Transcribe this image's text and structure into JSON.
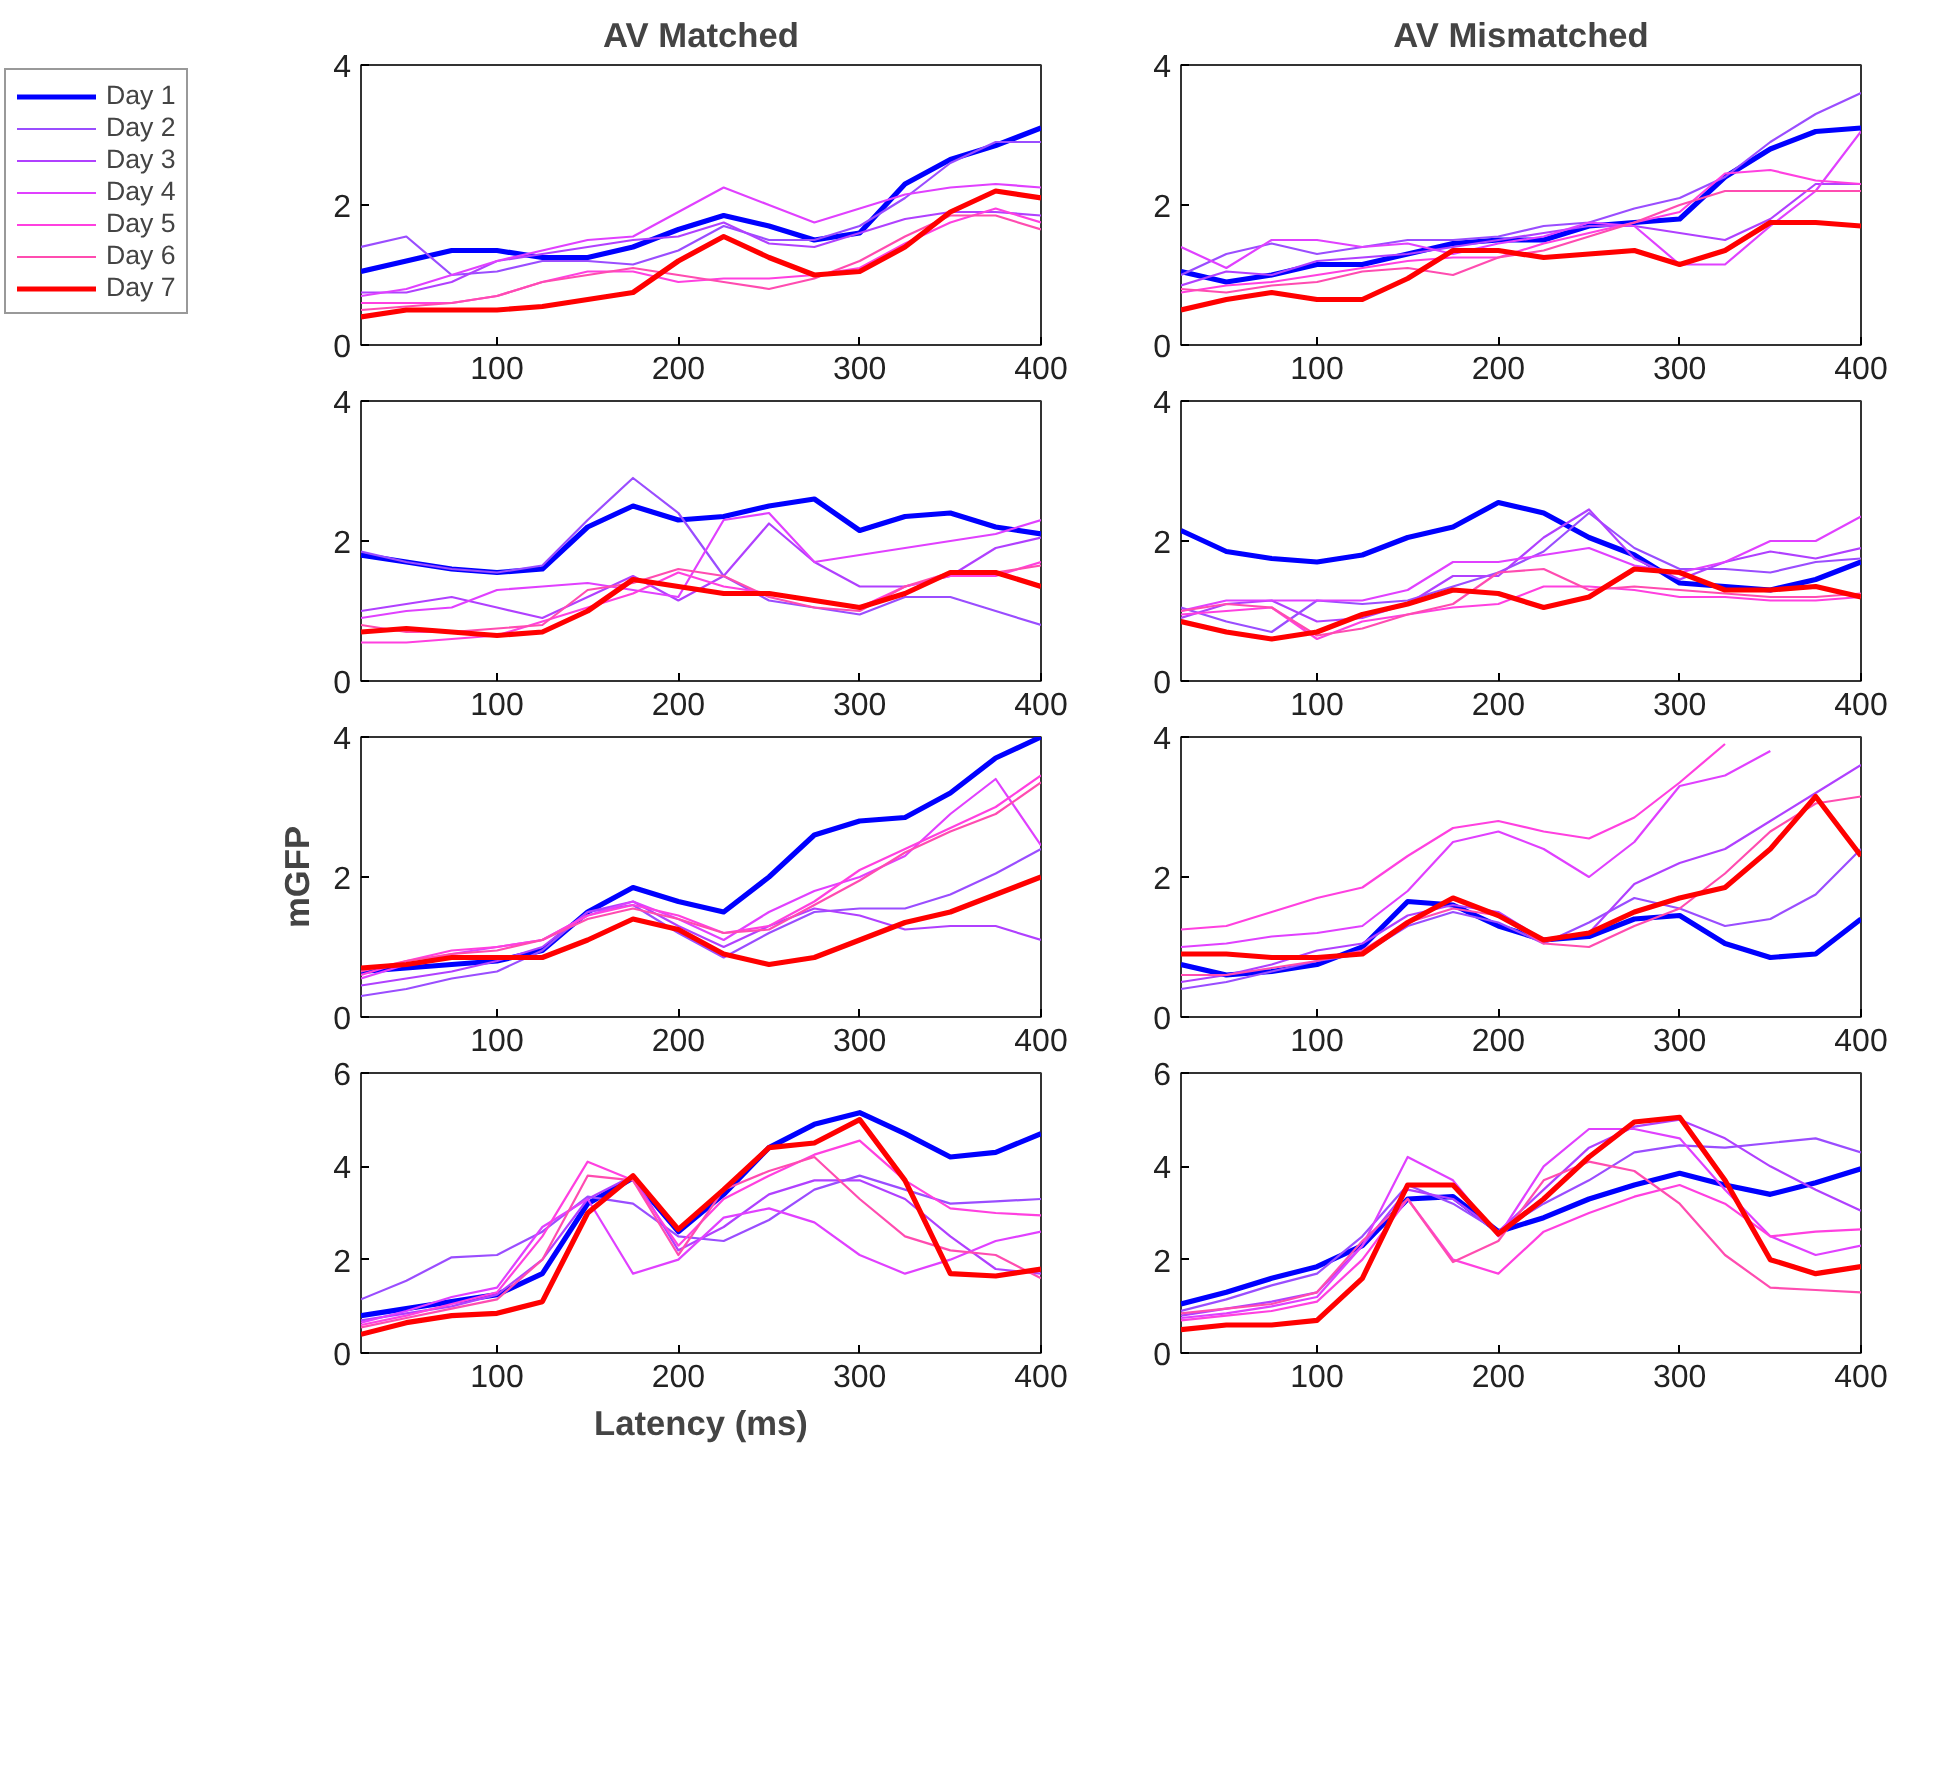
{
  "chart_data": [
    {
      "type": "line",
      "title": "AV Matched",
      "legend": "left",
      "xlim": [
        25,
        400
      ],
      "ylim": [
        0,
        4
      ],
      "xticks": [
        100,
        200,
        300,
        400
      ],
      "yticks": [
        0,
        2,
        4
      ],
      "x": [
        25,
        50,
        75,
        100,
        125,
        150,
        175,
        200,
        225,
        250,
        275,
        300,
        325,
        350,
        375,
        400
      ],
      "series": [
        {
          "name": "Day 1",
          "color": "#0000ff",
          "values": [
            1.05,
            1.2,
            1.35,
            1.35,
            1.25,
            1.25,
            1.4,
            1.65,
            1.85,
            1.7,
            1.5,
            1.6,
            2.3,
            2.65,
            2.85,
            3.1
          ]
        },
        {
          "name": "Day 2",
          "color": "#9a4dff",
          "values": [
            1.4,
            1.55,
            1.0,
            1.05,
            1.2,
            1.2,
            1.15,
            1.35,
            1.7,
            1.5,
            1.5,
            1.7,
            2.1,
            2.6,
            2.9,
            2.9
          ]
        },
        {
          "name": "Day 3",
          "color": "#b040ff",
          "values": [
            0.75,
            0.75,
            0.9,
            1.2,
            1.3,
            1.4,
            1.5,
            1.55,
            1.75,
            1.45,
            1.4,
            1.6,
            1.8,
            1.9,
            1.9,
            1.85
          ]
        },
        {
          "name": "Day 4",
          "color": "#e040ff",
          "values": [
            0.7,
            0.8,
            1.0,
            1.2,
            1.35,
            1.5,
            1.55,
            1.9,
            2.25,
            2.0,
            1.75,
            1.95,
            2.15,
            2.25,
            2.3,
            2.25
          ]
        },
        {
          "name": "Day 5",
          "color": "#ff40e0",
          "values": [
            0.6,
            0.6,
            0.6,
            0.7,
            0.9,
            1.05,
            1.05,
            0.9,
            0.95,
            0.95,
            1.0,
            1.1,
            1.45,
            1.75,
            1.95,
            1.75
          ]
        },
        {
          "name": "Day 6",
          "color": "#ff4cb0",
          "values": [
            0.5,
            0.55,
            0.6,
            0.7,
            0.9,
            1.0,
            1.1,
            1.0,
            0.9,
            0.8,
            0.95,
            1.2,
            1.55,
            1.85,
            1.85,
            1.65
          ]
        },
        {
          "name": "Day 7",
          "color": "#ff0000",
          "values": [
            0.4,
            0.5,
            0.5,
            0.5,
            0.55,
            0.65,
            0.75,
            1.2,
            1.55,
            1.25,
            1.0,
            1.05,
            1.4,
            1.9,
            2.2,
            2.1
          ]
        }
      ]
    },
    {
      "type": "line",
      "title": "AV Mismatched",
      "xlim": [
        25,
        400
      ],
      "ylim": [
        0,
        4
      ],
      "xticks": [
        100,
        200,
        300,
        400
      ],
      "yticks": [
        0,
        2,
        4
      ],
      "x": [
        25,
        50,
        75,
        100,
        125,
        150,
        175,
        200,
        225,
        250,
        275,
        300,
        325,
        350,
        375,
        400
      ],
      "series": [
        {
          "color": "#0000ff",
          "values": [
            1.05,
            0.9,
            1.0,
            1.15,
            1.15,
            1.3,
            1.45,
            1.5,
            1.5,
            1.7,
            1.75,
            1.8,
            2.4,
            2.8,
            3.05,
            3.1
          ]
        },
        {
          "color": "#9a4dff",
          "values": [
            1.0,
            1.3,
            1.45,
            1.3,
            1.4,
            1.5,
            1.5,
            1.55,
            1.7,
            1.75,
            1.95,
            2.1,
            2.4,
            2.9,
            3.3,
            3.6
          ]
        },
        {
          "color": "#b040ff",
          "values": [
            0.85,
            1.05,
            1.0,
            1.2,
            1.25,
            1.3,
            1.4,
            1.5,
            1.6,
            1.7,
            1.7,
            1.6,
            1.5,
            1.8,
            2.3,
            2.3
          ]
        },
        {
          "color": "#e040ff",
          "values": [
            1.4,
            1.1,
            1.5,
            1.5,
            1.4,
            1.45,
            1.3,
            1.45,
            1.55,
            1.75,
            1.7,
            1.15,
            1.15,
            1.7,
            2.2,
            3.05
          ]
        },
        {
          "color": "#ff40e0",
          "values": [
            0.75,
            0.85,
            0.9,
            1.0,
            1.1,
            1.2,
            1.25,
            1.25,
            1.45,
            1.6,
            1.75,
            1.9,
            2.45,
            2.5,
            2.35,
            2.3
          ]
        },
        {
          "color": "#ff4cb0",
          "values": [
            0.8,
            0.75,
            0.85,
            0.9,
            1.05,
            1.1,
            1.0,
            1.25,
            1.35,
            1.55,
            1.75,
            2.0,
            2.2,
            2.2,
            2.2,
            2.2
          ]
        },
        {
          "color": "#ff0000",
          "values": [
            0.5,
            0.65,
            0.75,
            0.65,
            0.65,
            0.95,
            1.35,
            1.35,
            1.25,
            1.3,
            1.35,
            1.15,
            1.35,
            1.75,
            1.75,
            1.7
          ]
        }
      ]
    },
    {
      "type": "line",
      "xlim": [
        25,
        400
      ],
      "ylim": [
        0,
        4
      ],
      "xticks": [
        100,
        200,
        300,
        400
      ],
      "yticks": [
        0,
        2,
        4
      ],
      "x": [
        25,
        50,
        75,
        100,
        125,
        150,
        175,
        200,
        225,
        250,
        275,
        300,
        325,
        350,
        375,
        400
      ],
      "series": [
        {
          "color": "#0000ff",
          "values": [
            1.8,
            1.7,
            1.6,
            1.55,
            1.6,
            2.2,
            2.5,
            2.3,
            2.35,
            2.5,
            2.6,
            2.15,
            2.35,
            2.4,
            2.2,
            2.1
          ]
        },
        {
          "color": "#9a4dff",
          "values": [
            1.85,
            1.7,
            1.6,
            1.55,
            1.65,
            2.3,
            2.9,
            2.4,
            1.5,
            1.15,
            1.05,
            0.95,
            1.2,
            1.2,
            1.0,
            0.8
          ]
        },
        {
          "color": "#b040ff",
          "values": [
            1.0,
            1.1,
            1.2,
            1.05,
            0.9,
            1.2,
            1.5,
            1.15,
            1.5,
            2.25,
            1.7,
            1.35,
            1.35,
            1.5,
            1.9,
            2.05
          ]
        },
        {
          "color": "#e040ff",
          "values": [
            0.9,
            1.0,
            1.05,
            1.3,
            1.35,
            1.4,
            1.3,
            1.2,
            2.3,
            2.4,
            1.7,
            1.8,
            1.9,
            2.0,
            2.1,
            2.3
          ]
        },
        {
          "color": "#ff40e0",
          "values": [
            0.55,
            0.55,
            0.6,
            0.65,
            0.85,
            1.05,
            1.25,
            1.55,
            1.35,
            1.25,
            1.15,
            1.05,
            1.35,
            1.5,
            1.5,
            1.7
          ]
        },
        {
          "color": "#ff4cb0",
          "values": [
            0.8,
            0.7,
            0.7,
            0.75,
            0.8,
            1.3,
            1.4,
            1.6,
            1.5,
            1.2,
            1.05,
            1.0,
            1.35,
            1.55,
            1.55,
            1.65
          ]
        },
        {
          "color": "#ff0000",
          "values": [
            0.7,
            0.75,
            0.7,
            0.65,
            0.7,
            1.0,
            1.45,
            1.35,
            1.25,
            1.25,
            1.15,
            1.05,
            1.25,
            1.55,
            1.55,
            1.35
          ]
        }
      ]
    },
    {
      "type": "line",
      "xlim": [
        25,
        400
      ],
      "ylim": [
        0,
        4
      ],
      "xticks": [
        100,
        200,
        300,
        400
      ],
      "yticks": [
        0,
        2,
        4
      ],
      "x": [
        25,
        50,
        75,
        100,
        125,
        150,
        175,
        200,
        225,
        250,
        275,
        300,
        325,
        350,
        375,
        400
      ],
      "series": [
        {
          "color": "#0000ff",
          "values": [
            2.15,
            1.85,
            1.75,
            1.7,
            1.8,
            2.05,
            2.2,
            2.55,
            2.4,
            2.05,
            1.8,
            1.4,
            1.35,
            1.3,
            1.45,
            1.7
          ]
        },
        {
          "color": "#9a4dff",
          "values": [
            1.05,
            0.85,
            0.7,
            1.15,
            1.1,
            1.15,
            1.35,
            1.55,
            1.85,
            2.4,
            1.9,
            1.6,
            1.6,
            1.55,
            1.7,
            1.75
          ]
        },
        {
          "color": "#b040ff",
          "values": [
            0.9,
            1.1,
            1.15,
            0.85,
            0.9,
            1.1,
            1.5,
            1.5,
            2.05,
            2.45,
            1.75,
            1.45,
            1.7,
            1.85,
            1.75,
            1.9
          ]
        },
        {
          "color": "#e040ff",
          "values": [
            1.0,
            1.15,
            1.15,
            1.15,
            1.15,
            1.3,
            1.7,
            1.7,
            1.8,
            1.9,
            1.65,
            1.55,
            1.7,
            2.0,
            2.0,
            2.35
          ]
        },
        {
          "color": "#ff40e0",
          "values": [
            0.95,
            1.0,
            1.05,
            0.6,
            0.85,
            0.95,
            1.05,
            1.1,
            1.35,
            1.35,
            1.3,
            1.2,
            1.2,
            1.15,
            1.15,
            1.2
          ]
        },
        {
          "color": "#ff4cb0",
          "values": [
            1.0,
            1.1,
            1.05,
            0.65,
            0.75,
            0.95,
            1.1,
            1.55,
            1.6,
            1.3,
            1.35,
            1.3,
            1.25,
            1.2,
            1.2,
            1.25
          ]
        },
        {
          "color": "#ff0000",
          "values": [
            0.85,
            0.7,
            0.6,
            0.7,
            0.95,
            1.1,
            1.3,
            1.25,
            1.05,
            1.2,
            1.6,
            1.55,
            1.3,
            1.3,
            1.35,
            1.2
          ]
        }
      ]
    },
    {
      "type": "line",
      "ylabel": "mGFP",
      "xlim": [
        25,
        400
      ],
      "ylim": [
        0,
        4
      ],
      "xticks": [
        100,
        200,
        300,
        400
      ],
      "yticks": [
        0,
        2,
        4
      ],
      "x": [
        25,
        50,
        75,
        100,
        125,
        150,
        175,
        200,
        225,
        250,
        275,
        300,
        325,
        350,
        375,
        400
      ],
      "series": [
        {
          "color": "#0000ff",
          "values": [
            0.65,
            0.7,
            0.75,
            0.8,
            0.95,
            1.5,
            1.85,
            1.65,
            1.5,
            2.0,
            2.6,
            2.8,
            2.85,
            3.2,
            3.7,
            4.0
          ]
        },
        {
          "color": "#9a4dff",
          "values": [
            0.3,
            0.4,
            0.55,
            0.65,
            0.95,
            1.5,
            1.6,
            1.2,
            0.85,
            1.2,
            1.5,
            1.55,
            1.55,
            1.75,
            2.05,
            2.4
          ]
        },
        {
          "color": "#b040ff",
          "values": [
            0.45,
            0.55,
            0.65,
            0.8,
            1.0,
            1.5,
            1.65,
            1.3,
            1.0,
            1.3,
            1.55,
            1.45,
            1.25,
            1.3,
            1.3,
            1.1
          ]
        },
        {
          "color": "#e040ff",
          "values": [
            0.55,
            0.75,
            0.9,
            1.0,
            1.1,
            1.45,
            1.65,
            1.4,
            1.1,
            1.5,
            1.8,
            2.0,
            2.3,
            2.9,
            3.4,
            2.45
          ]
        },
        {
          "color": "#ff40e0",
          "values": [
            0.6,
            0.8,
            0.95,
            1.0,
            1.1,
            1.45,
            1.6,
            1.45,
            1.2,
            1.3,
            1.65,
            2.1,
            2.4,
            2.7,
            3.0,
            3.45
          ]
        },
        {
          "color": "#ff4cb0",
          "values": [
            0.65,
            0.8,
            0.9,
            0.95,
            1.1,
            1.4,
            1.55,
            1.4,
            1.2,
            1.25,
            1.6,
            1.95,
            2.35,
            2.65,
            2.9,
            3.35
          ]
        },
        {
          "color": "#ff0000",
          "values": [
            0.7,
            0.75,
            0.85,
            0.85,
            0.85,
            1.1,
            1.4,
            1.25,
            0.9,
            0.75,
            0.85,
            1.1,
            1.35,
            1.5,
            1.75,
            2.0
          ]
        }
      ]
    },
    {
      "type": "line",
      "xlim": [
        25,
        400
      ],
      "ylim": [
        0,
        4
      ],
      "xticks": [
        100,
        200,
        300,
        400
      ],
      "yticks": [
        0,
        2,
        4
      ],
      "x": [
        25,
        50,
        75,
        100,
        125,
        150,
        175,
        200,
        225,
        250,
        275,
        300,
        325,
        350,
        375,
        400
      ],
      "series": [
        {
          "color": "#0000ff",
          "values": [
            0.75,
            0.6,
            0.65,
            0.75,
            1.0,
            1.65,
            1.6,
            1.3,
            1.1,
            1.15,
            1.4,
            1.45,
            1.05,
            0.85,
            0.9,
            1.4
          ]
        },
        {
          "color": "#9a4dff",
          "values": [
            0.4,
            0.5,
            0.65,
            0.8,
            0.9,
            1.3,
            1.5,
            1.35,
            1.05,
            1.35,
            1.7,
            1.55,
            1.3,
            1.4,
            1.75,
            2.4
          ]
        },
        {
          "color": "#b040ff",
          "values": [
            0.5,
            0.6,
            0.75,
            0.95,
            1.05,
            1.45,
            1.6,
            1.5,
            1.1,
            1.2,
            1.9,
            2.2,
            2.4,
            2.8,
            3.2,
            3.6
          ]
        },
        {
          "color": "#e040ff",
          "values": [
            1.0,
            1.05,
            1.15,
            1.2,
            1.3,
            1.8,
            2.5,
            2.65,
            2.4,
            2.0,
            2.5,
            3.3,
            3.45,
            3.8,
            null,
            null
          ]
        },
        {
          "color": "#ff40e0",
          "values": [
            1.25,
            1.3,
            1.5,
            1.7,
            1.85,
            2.3,
            2.7,
            2.8,
            2.65,
            2.55,
            2.85,
            3.35,
            3.9,
            null,
            null,
            null
          ]
        },
        {
          "color": "#ff4cb0",
          "values": [
            0.6,
            0.6,
            0.7,
            0.8,
            0.95,
            1.35,
            1.55,
            1.45,
            1.05,
            1.0,
            1.3,
            1.55,
            2.05,
            2.65,
            3.05,
            3.15
          ]
        },
        {
          "color": "#ff0000",
          "values": [
            0.9,
            0.9,
            0.85,
            0.85,
            0.9,
            1.35,
            1.7,
            1.45,
            1.1,
            1.2,
            1.5,
            1.7,
            1.85,
            2.4,
            3.15,
            2.3
          ]
        }
      ]
    },
    {
      "type": "line",
      "xlabel": "Latency (ms)",
      "xlim": [
        25,
        400
      ],
      "ylim": [
        0,
        6
      ],
      "xticks": [
        100,
        200,
        300,
        400
      ],
      "yticks": [
        0,
        2,
        4,
        6
      ],
      "x": [
        25,
        50,
        75,
        100,
        125,
        150,
        175,
        200,
        225,
        250,
        275,
        300,
        325,
        350,
        375,
        400
      ],
      "series": [
        {
          "color": "#0000ff",
          "values": [
            0.8,
            0.95,
            1.1,
            1.25,
            1.7,
            3.2,
            3.75,
            2.6,
            3.4,
            4.4,
            4.9,
            5.15,
            4.7,
            4.2,
            4.3,
            4.7
          ]
        },
        {
          "color": "#9a4dff",
          "values": [
            1.15,
            1.55,
            2.05,
            2.1,
            2.6,
            3.35,
            3.2,
            2.5,
            2.4,
            2.85,
            3.5,
            3.8,
            3.5,
            3.2,
            3.25,
            3.3
          ]
        },
        {
          "color": "#b040ff",
          "values": [
            0.7,
            0.85,
            1.0,
            1.25,
            2.0,
            3.3,
            3.8,
            2.2,
            2.7,
            3.4,
            3.7,
            3.7,
            3.3,
            2.5,
            1.8,
            1.7
          ]
        },
        {
          "color": "#e040ff",
          "values": [
            0.65,
            0.9,
            1.2,
            1.4,
            2.7,
            3.3,
            1.7,
            2.0,
            2.9,
            3.1,
            2.8,
            2.1,
            1.7,
            2.0,
            2.4,
            2.6
          ]
        },
        {
          "color": "#ff40e0",
          "values": [
            0.6,
            0.8,
            1.05,
            1.3,
            2.5,
            4.1,
            3.7,
            2.3,
            3.3,
            3.8,
            4.25,
            4.55,
            3.7,
            3.1,
            3.0,
            2.95
          ]
        },
        {
          "color": "#ff4cb0",
          "values": [
            0.55,
            0.75,
            0.95,
            1.15,
            2.0,
            3.8,
            3.7,
            2.1,
            3.5,
            3.9,
            4.2,
            3.3,
            2.5,
            2.2,
            2.1,
            1.6
          ]
        },
        {
          "color": "#ff0000",
          "values": [
            0.4,
            0.65,
            0.8,
            0.85,
            1.1,
            3.0,
            3.8,
            2.65,
            3.5,
            4.4,
            4.5,
            5.0,
            3.7,
            1.7,
            1.65,
            1.8
          ]
        }
      ]
    },
    {
      "type": "line",
      "xlim": [
        25,
        400
      ],
      "ylim": [
        0,
        6
      ],
      "xticks": [
        100,
        200,
        300,
        400
      ],
      "yticks": [
        0,
        2,
        4,
        6
      ],
      "x": [
        25,
        50,
        75,
        100,
        125,
        150,
        175,
        200,
        225,
        250,
        275,
        300,
        325,
        350,
        375,
        400
      ],
      "series": [
        {
          "color": "#0000ff",
          "values": [
            1.05,
            1.3,
            1.6,
            1.85,
            2.3,
            3.3,
            3.35,
            2.6,
            2.9,
            3.3,
            3.6,
            3.85,
            3.6,
            3.4,
            3.65,
            3.95
          ]
        },
        {
          "color": "#9a4dff",
          "values": [
            0.9,
            1.15,
            1.45,
            1.7,
            2.5,
            3.6,
            3.2,
            2.6,
            3.2,
            3.7,
            4.3,
            4.45,
            4.4,
            4.5,
            4.6,
            4.3
          ]
        },
        {
          "color": "#b040ff",
          "values": [
            0.8,
            0.95,
            1.1,
            1.3,
            2.3,
            3.5,
            3.3,
            2.6,
            3.5,
            4.4,
            4.85,
            5.0,
            4.6,
            4.0,
            3.5,
            3.05
          ]
        },
        {
          "color": "#e040ff",
          "values": [
            0.75,
            0.85,
            1.0,
            1.2,
            2.3,
            4.2,
            3.7,
            2.5,
            4.0,
            4.8,
            4.8,
            4.6,
            3.5,
            2.5,
            2.1,
            2.3
          ]
        },
        {
          "color": "#ff40e0",
          "values": [
            0.7,
            0.8,
            0.9,
            1.1,
            2.0,
            3.3,
            2.0,
            1.7,
            2.6,
            3.0,
            3.35,
            3.6,
            3.2,
            2.5,
            2.6,
            2.65
          ]
        },
        {
          "color": "#ff4cb0",
          "values": [
            0.85,
            0.95,
            1.05,
            1.3,
            2.4,
            3.3,
            1.95,
            2.4,
            3.7,
            4.1,
            3.9,
            3.2,
            2.1,
            1.4,
            1.35,
            1.3
          ]
        },
        {
          "color": "#ff0000",
          "values": [
            0.5,
            0.6,
            0.6,
            0.7,
            1.6,
            3.6,
            3.6,
            2.55,
            3.3,
            4.2,
            4.95,
            5.05,
            3.7,
            2.0,
            1.7,
            1.85
          ]
        }
      ]
    }
  ]
}
